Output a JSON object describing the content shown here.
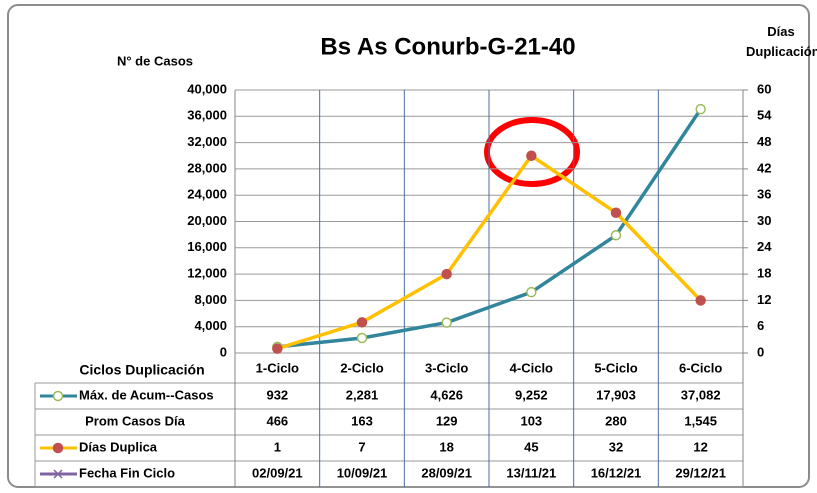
{
  "chart_data": {
    "type": "line",
    "title": "Bs As Conurb-G-21-40",
    "y_label": "N° de Casos",
    "y2_label": "Días Duplicación",
    "x_label": "Ciclos Duplicación",
    "categories": [
      "1-Ciclo",
      "2-Ciclo",
      "3-Ciclo",
      "4-Ciclo",
      "5-Ciclo",
      "6-Ciclo"
    ],
    "ylim": [
      0,
      40000
    ],
    "yticks": [
      0,
      {
        "value": 4000,
        "label": "4,000"
      },
      {
        "value": 8000,
        "label": "8,000"
      },
      {
        "value": 12000,
        "label": "12,000"
      },
      {
        "value": 16000,
        "label": "16,000"
      },
      {
        "value": 20000,
        "label": "20,000"
      },
      {
        "value": 24000,
        "label": "24,000"
      },
      {
        "value": 28000,
        "label": "28,000"
      },
      {
        "value": 32000,
        "label": "32,000"
      },
      {
        "value": 36000,
        "label": "36,000"
      },
      {
        "value": 40000,
        "label": "40,000"
      }
    ],
    "y2lim": [
      0,
      60
    ],
    "y2ticks": [
      0,
      6,
      12,
      18,
      24,
      30,
      36,
      42,
      48,
      54,
      60
    ],
    "grid": true,
    "series": [
      {
        "name": "Máx. de Acum--Casos",
        "color": "#31859c",
        "marker": "circle",
        "axis": "y",
        "values": [
          932,
          2281,
          4626,
          9252,
          17903,
          37082
        ],
        "value_labels": [
          "932",
          "2,281",
          "4,626",
          "9,252",
          "17,903",
          "37,082"
        ]
      },
      {
        "name": "Prom Casos Día",
        "values": [
          466,
          163,
          129,
          103,
          280,
          1545
        ],
        "value_labels": [
          "466",
          "163",
          "129",
          "103",
          "280",
          "1,545"
        ]
      },
      {
        "name": "Días Duplica",
        "color": "#ffc000",
        "marker": "circle",
        "axis": "y2",
        "values": [
          1,
          7,
          18,
          45,
          32,
          12
        ]
      },
      {
        "name": "Fecha Fin Ciclo",
        "color": "#8064a2",
        "marker": "x",
        "values": [
          "02/09/21",
          "10/09/21",
          "28/09/21",
          "13/11/21",
          "16/12/21",
          "29/12/21"
        ]
      }
    ]
  }
}
